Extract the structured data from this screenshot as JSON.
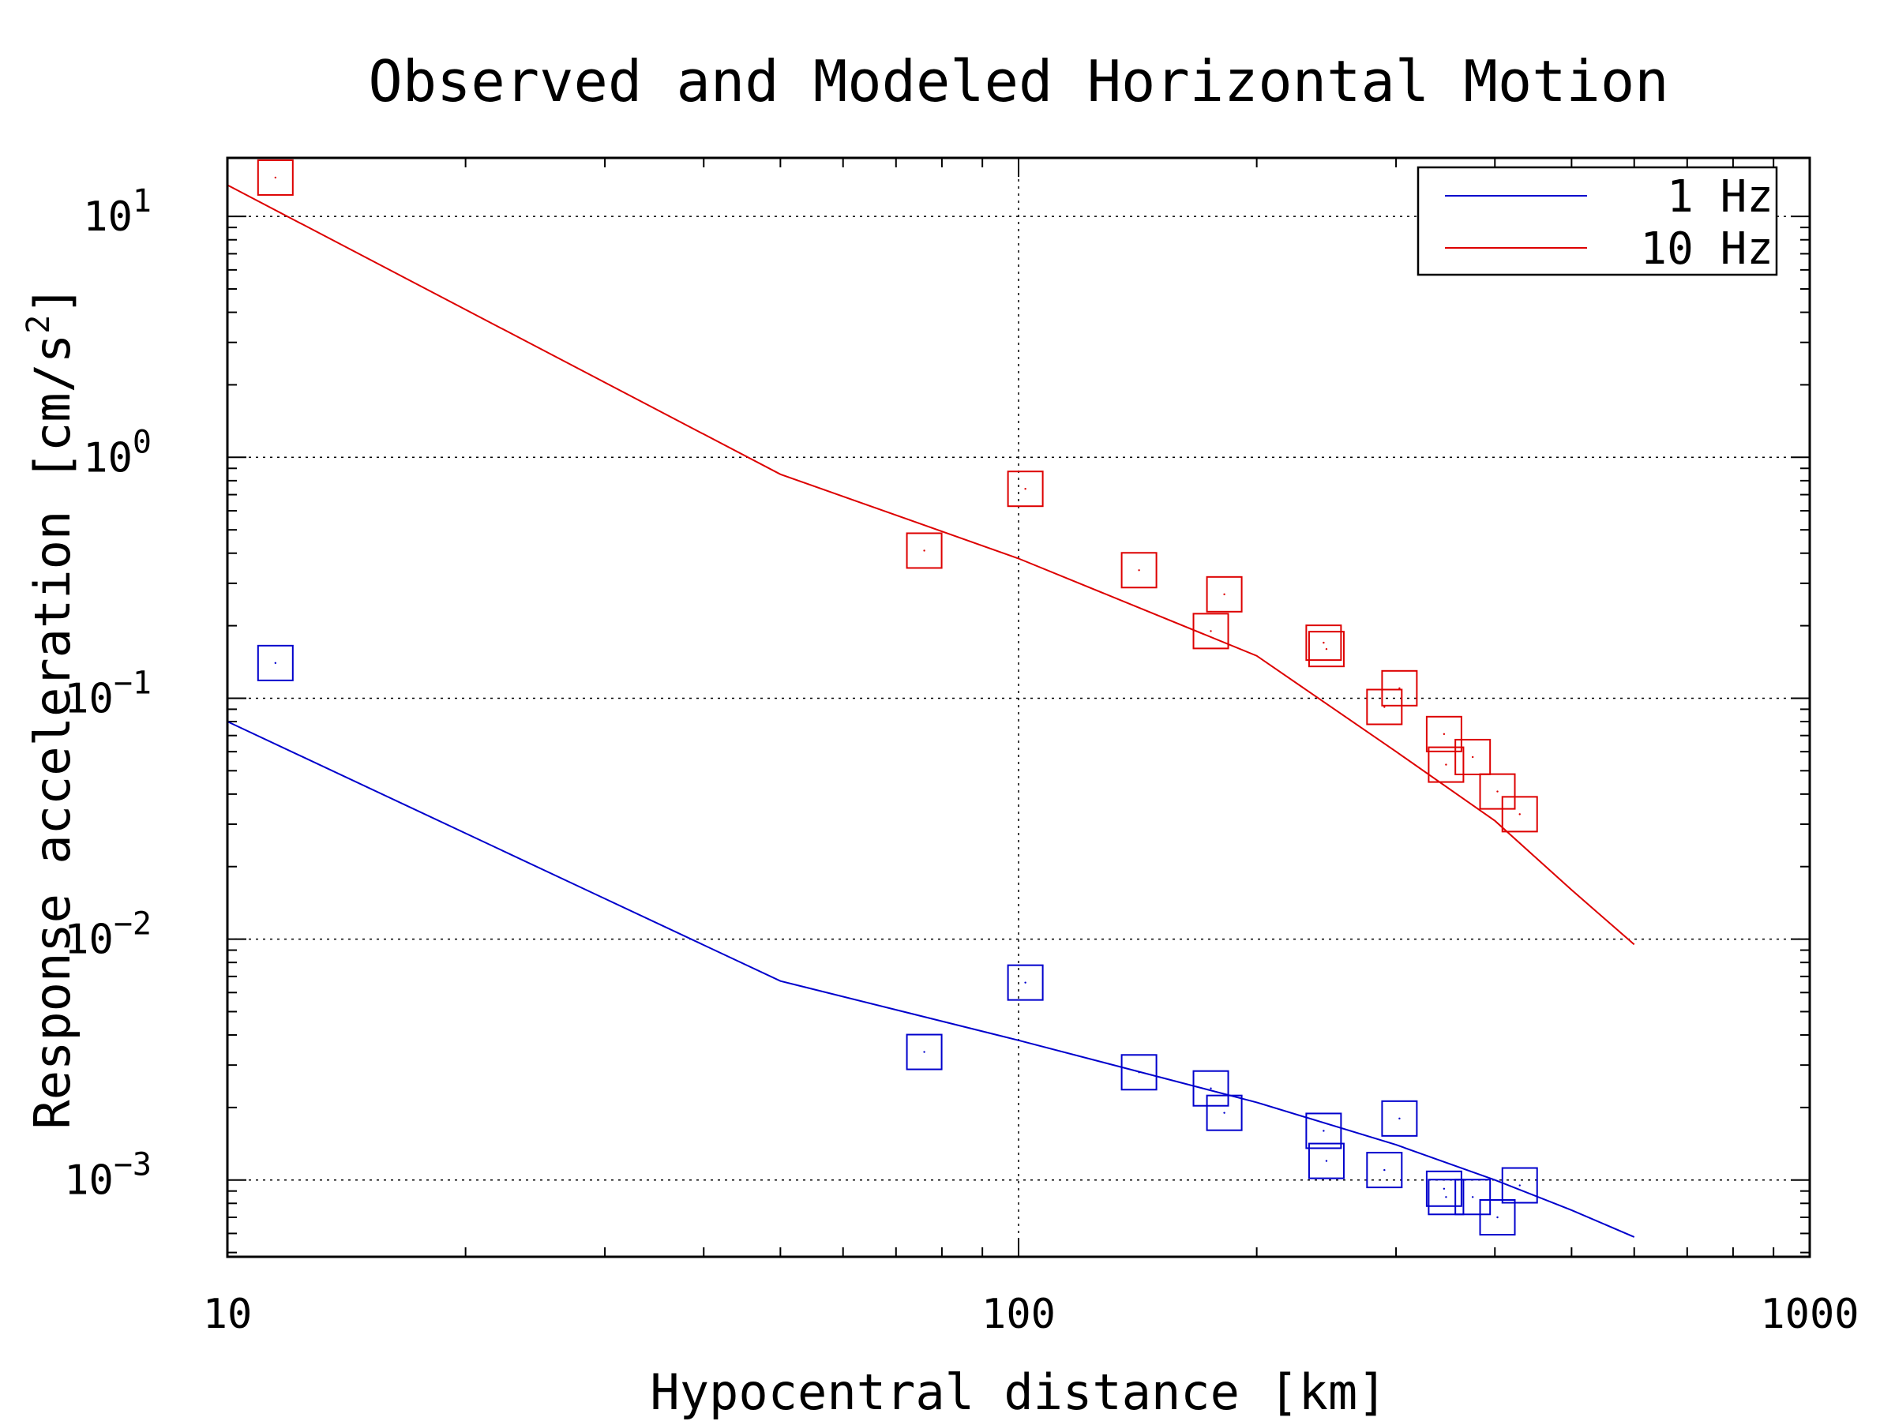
{
  "chart_data": {
    "type": "scatter",
    "title": "Observed and Modeled Horizontal Motion",
    "xlabel": "Hypocentral distance [km]",
    "ylabel": "Response acceleration [cm/s^2]",
    "ylabel_main": "Response acceleration [cm/s",
    "ylabel_sup": "2",
    "ylabel_end": "]",
    "x_scale": "log",
    "y_scale": "log",
    "xlim": [
      10,
      1000
    ],
    "ylim": [
      0.00048,
      17.5
    ],
    "x_ticks": [
      {
        "value": 10,
        "label": "10"
      },
      {
        "value": 100,
        "label": "100"
      },
      {
        "value": 1000,
        "label": "1000"
      }
    ],
    "y_ticks": [
      {
        "value": 10,
        "base": "10",
        "exp": "1"
      },
      {
        "value": 1,
        "base": "10",
        "exp": "0"
      },
      {
        "value": 0.1,
        "base": "10",
        "exp": "−1"
      },
      {
        "value": 0.01,
        "base": "10",
        "exp": "−2"
      },
      {
        "value": 0.001,
        "base": "10",
        "exp": "−3"
      }
    ],
    "grid": true,
    "legend_position": "top-right",
    "series": [
      {
        "name": "1 Hz",
        "color": "#0000cc",
        "model": {
          "x": [
            10,
            50,
            100,
            200,
            300,
            400,
            500,
            600
          ],
          "y": [
            0.08,
            0.0067,
            0.0038,
            0.0021,
            0.0014,
            0.001,
            0.00075,
            0.00058
          ]
        },
        "observed": {
          "x": [
            11.5,
            76,
            102,
            142,
            175,
            182,
            243,
            245,
            290,
            303,
            345,
            347,
            375,
            403,
            430
          ],
          "y": [
            0.14,
            0.0034,
            0.0066,
            0.0028,
            0.0024,
            0.0019,
            0.0016,
            0.0012,
            0.0011,
            0.0018,
            0.00092,
            0.00085,
            0.00085,
            0.0007,
            0.00095
          ]
        }
      },
      {
        "name": "10 Hz",
        "color": "#dd0000",
        "model": {
          "x": [
            10,
            50,
            100,
            200,
            300,
            400,
            500,
            600
          ],
          "y": [
            13.5,
            0.85,
            0.38,
            0.15,
            0.06,
            0.031,
            0.016,
            0.0095
          ]
        },
        "observed": {
          "x": [
            11.5,
            76,
            102,
            142,
            175,
            182,
            243,
            245,
            290,
            303,
            345,
            347,
            375,
            403,
            430
          ],
          "y": [
            14.5,
            0.41,
            0.74,
            0.34,
            0.19,
            0.27,
            0.17,
            0.16,
            0.092,
            0.11,
            0.071,
            0.053,
            0.057,
            0.041,
            0.033
          ]
        }
      }
    ]
  }
}
